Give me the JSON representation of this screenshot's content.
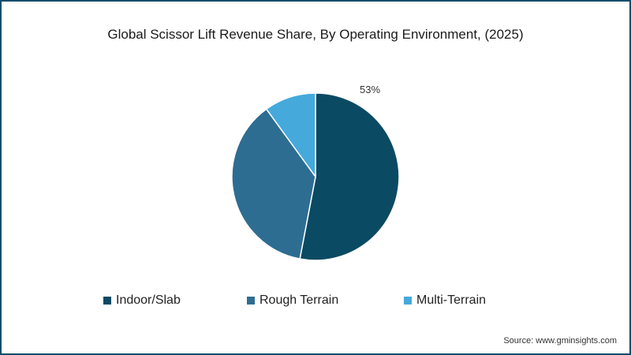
{
  "chart_data": {
    "type": "pie",
    "title": "Global Scissor Lift Revenue Share, By Operating Environment, (2025)",
    "categories": [
      "Indoor/Slab",
      "Rough Terrain",
      "Multi-Terrain"
    ],
    "values": [
      53,
      37,
      10
    ],
    "colors": [
      "#0b4a63",
      "#2e6d92",
      "#45a9dc"
    ],
    "data_labels": [
      "53%",
      "",
      ""
    ],
    "start_angle": "12 o'clock, clockwise",
    "legend_position": "bottom"
  },
  "title": "Global Scissor Lift Revenue Share, By Operating Environment, (2025)",
  "pie_label": "53%",
  "legend": [
    {
      "label": "Indoor/Slab",
      "color": "#0b4a63"
    },
    {
      "label": "Rough Terrain",
      "color": "#2e6d92"
    },
    {
      "label": "Multi-Terrain",
      "color": "#45a9dc"
    }
  ],
  "source": "Source: www.gminsights.com"
}
